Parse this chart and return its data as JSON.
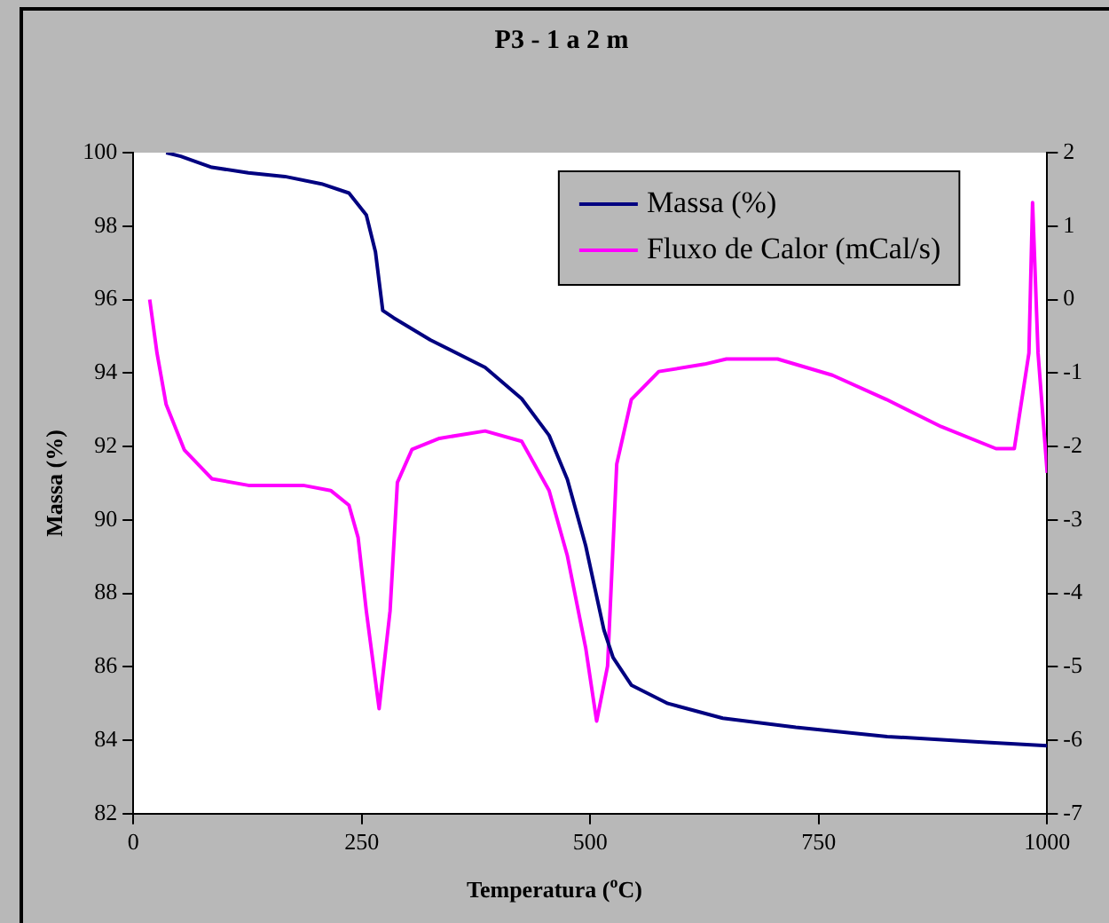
{
  "chart_data": {
    "type": "line",
    "title": "P3 - 1 a 2 m",
    "xlabel": "Temperatura ($^{o}$C)",
    "ylabel": "Massa (%)",
    "xlim": [
      0,
      1000
    ],
    "xticks": [
      0,
      250,
      500,
      750,
      1000
    ],
    "ylim": [
      82,
      100
    ],
    "yticks": [
      82,
      84,
      86,
      88,
      90,
      92,
      94,
      96,
      98,
      100
    ],
    "y2lim": [
      -7,
      2
    ],
    "y2ticks": [
      -7,
      -6,
      -5,
      -4,
      -3,
      -2,
      -1,
      0,
      1,
      2
    ],
    "grid": false,
    "legend": "top right",
    "marker": "none",
    "line_style": "solid",
    "series": [
      {
        "name": "Massa (%)",
        "color": "#000080",
        "x": [
          36,
          52,
          86,
          126,
          166,
          206,
          236,
          255,
          265,
          273,
          285,
          325,
          385,
          425,
          455,
          475,
          495,
          515,
          525,
          545,
          585,
          645,
          725,
          825,
          925,
          1000
        ],
        "values": [
          100,
          99.9,
          99.6,
          99.45,
          99.35,
          99.15,
          98.9,
          98.3,
          97.3,
          95.7,
          95.5,
          94.9,
          94.15,
          93.3,
          92.3,
          91.1,
          89.3,
          87.0,
          86.25,
          85.5,
          85.0,
          84.6,
          84.35,
          84.1,
          83.95,
          83.85
        ]
      },
      {
        "name": "Fluxo de Calor (mCal/s)",
        "color": "#ff00ff",
        "axis": "y2",
        "x": [
          18,
          26,
          36,
          56,
          86,
          126,
          186,
          216,
          236,
          246,
          255,
          269,
          281,
          289,
          305,
          335,
          385,
          425,
          455,
          475,
          495,
          507,
          519,
          529,
          545,
          575,
          625,
          649,
          705,
          765,
          824,
          884,
          944,
          964,
          980,
          984,
          990,
          1000
        ],
        "values": [
          0,
          -0.73,
          -1.43,
          -2.05,
          -2.44,
          -2.53,
          -2.53,
          -2.6,
          -2.8,
          -3.24,
          -4.24,
          -5.57,
          -4.24,
          -2.49,
          -2.04,
          -1.89,
          -1.79,
          -1.93,
          -2.6,
          -3.49,
          -4.74,
          -5.74,
          -4.99,
          -2.24,
          -1.36,
          -0.98,
          -0.88,
          -0.81,
          -0.81,
          -1.03,
          -1.36,
          -1.73,
          -2.03,
          -2.03,
          -0.73,
          1.32,
          -0.73,
          -2.36
        ]
      }
    ]
  }
}
